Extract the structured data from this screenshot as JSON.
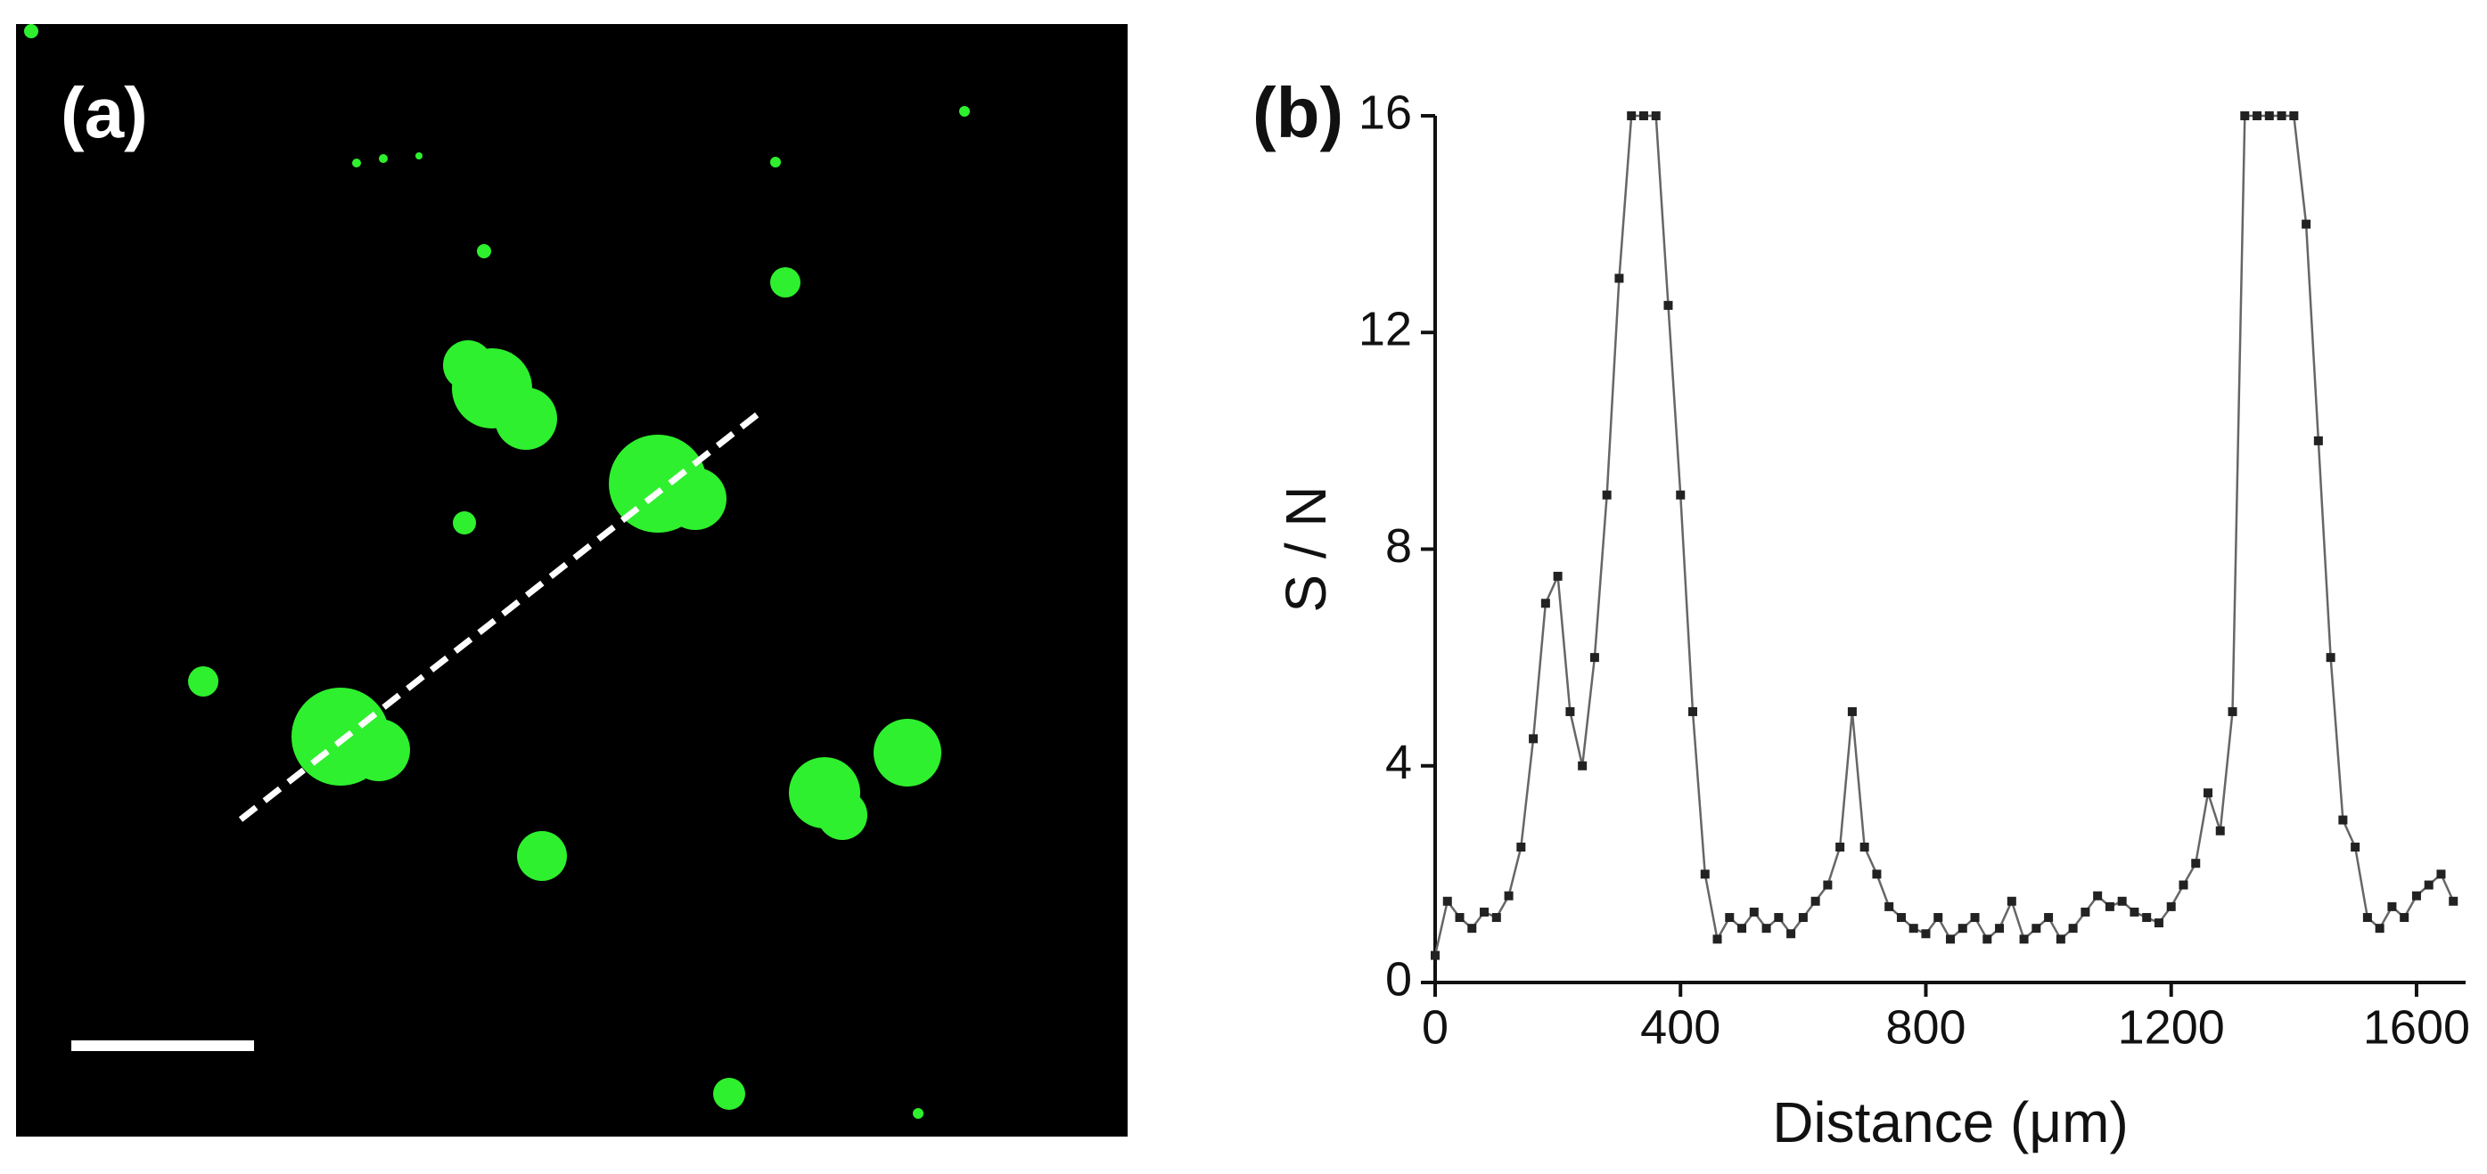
{
  "panel_a": {
    "label": "(a)"
  },
  "chart_data": {
    "type": "line",
    "label": "(b)",
    "xlabel": "Distance (μm)",
    "ylabel": "S / N",
    "x": [
      0,
      20,
      40,
      60,
      80,
      100,
      120,
      140,
      160,
      180,
      200,
      220,
      240,
      260,
      280,
      300,
      320,
      340,
      360,
      380,
      400,
      420,
      440,
      460,
      480,
      500,
      520,
      540,
      560,
      580,
      600,
      620,
      640,
      660,
      680,
      700,
      720,
      740,
      760,
      780,
      800,
      820,
      840,
      860,
      880,
      900,
      920,
      940,
      960,
      980,
      1000,
      1020,
      1040,
      1060,
      1080,
      1100,
      1120,
      1140,
      1160,
      1180,
      1200,
      1220,
      1240,
      1260,
      1280,
      1300,
      1320,
      1340,
      1360,
      1380,
      1400,
      1420,
      1440,
      1460,
      1480,
      1500,
      1520,
      1540,
      1560,
      1580,
      1600,
      1620,
      1640,
      1660
    ],
    "values": [
      0.5,
      1.5,
      1.2,
      1.0,
      1.3,
      1.2,
      1.6,
      2.5,
      4.5,
      7.0,
      7.5,
      5.0,
      4.0,
      6.0,
      9.0,
      13.0,
      16,
      16,
      16,
      12.5,
      9.0,
      5.0,
      2.0,
      0.8,
      1.2,
      1.0,
      1.3,
      1.0,
      1.2,
      0.9,
      1.2,
      1.5,
      1.8,
      2.5,
      5.0,
      2.5,
      2.0,
      1.4,
      1.2,
      1.0,
      0.9,
      1.2,
      0.8,
      1.0,
      1.2,
      0.8,
      1.0,
      1.5,
      0.8,
      1.0,
      1.2,
      0.8,
      1.0,
      1.3,
      1.6,
      1.4,
      1.5,
      1.3,
      1.2,
      1.1,
      1.4,
      1.8,
      2.2,
      3.5,
      2.8,
      5.0,
      16,
      16,
      16,
      16,
      16,
      14.0,
      10.0,
      6.0,
      3.0,
      2.5,
      1.2,
      1.0,
      1.4,
      1.2,
      1.6,
      1.8,
      2.0,
      1.5
    ],
    "color": "#222222",
    "xlim": [
      0,
      1680
    ],
    "ylim": [
      0,
      16
    ],
    "xticks": [
      0,
      400,
      800,
      1200,
      1600
    ],
    "yticks": [
      0,
      4,
      8,
      12,
      16
    ]
  }
}
